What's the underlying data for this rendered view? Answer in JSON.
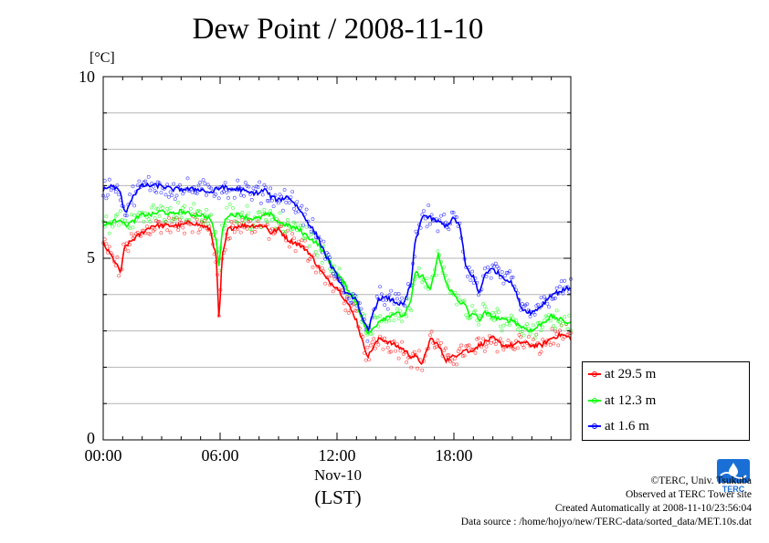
{
  "chart_data": {
    "type": "line",
    "title": "Dew Point / 2008-11-10",
    "ylabel": "[°C]",
    "xlabel": "(LST)",
    "date_label": "Nov-10",
    "ylim": [
      0,
      10
    ],
    "xlim": [
      0,
      24
    ],
    "x_tick_labels": [
      "00:00",
      "06:00",
      "12:00",
      "18:00"
    ],
    "y_tick_labels": [
      "10",
      "5",
      "0"
    ],
    "grid": true,
    "legend_position": "bottom-right",
    "x": [
      0,
      0.5,
      0.9,
      1.1,
      1.5,
      2,
      2.5,
      3,
      3.5,
      4,
      4.5,
      5,
      5.5,
      5.8,
      5.95,
      6.1,
      6.4,
      7,
      7.5,
      8,
      8.3,
      8.6,
      9,
      9.5,
      10,
      10.5,
      11,
      11.5,
      12,
      12.5,
      13,
      13.3,
      13.6,
      13.9,
      14.2,
      14.6,
      15,
      15.4,
      15.8,
      16,
      16.4,
      16.8,
      17.2,
      17.6,
      18,
      18.3,
      18.6,
      18.8,
      19,
      19.3,
      19.6,
      20,
      20.5,
      21,
      21.5,
      22,
      22.5,
      23,
      23.5,
      24
    ],
    "series": [
      {
        "name": "at 29.5 m",
        "color": "#ff0000",
        "values": [
          5.4,
          5.0,
          4.6,
          5.3,
          5.5,
          5.7,
          5.9,
          5.9,
          5.9,
          5.9,
          6.0,
          5.9,
          5.8,
          5.0,
          3.2,
          5.0,
          5.8,
          5.9,
          5.9,
          5.9,
          5.9,
          5.7,
          5.8,
          5.5,
          5.4,
          5.2,
          4.8,
          4.4,
          4.2,
          3.8,
          3.3,
          2.7,
          2.3,
          2.6,
          2.8,
          2.7,
          2.6,
          2.5,
          2.3,
          2.3,
          2.1,
          2.8,
          2.6,
          2.2,
          2.3,
          2.4,
          2.5,
          2.4,
          2.5,
          2.6,
          2.7,
          2.8,
          2.6,
          2.6,
          2.7,
          2.6,
          2.6,
          2.8,
          2.9,
          2.8
        ]
      },
      {
        "name": "at 12.3 m",
        "color": "#00ff00",
        "values": [
          5.9,
          6.0,
          6.1,
          5.9,
          6.0,
          6.2,
          6.2,
          6.3,
          6.2,
          6.3,
          6.2,
          6.2,
          6.1,
          5.5,
          4.7,
          5.8,
          6.2,
          6.2,
          6.1,
          6.1,
          6.2,
          6.2,
          6.0,
          5.9,
          5.8,
          5.6,
          5.4,
          5.0,
          4.6,
          4.2,
          3.8,
          3.3,
          2.9,
          3.1,
          3.3,
          3.4,
          3.5,
          3.4,
          3.8,
          4.6,
          4.5,
          4.1,
          5.1,
          4.3,
          4.0,
          3.8,
          3.7,
          3.4,
          3.5,
          3.3,
          3.5,
          3.4,
          3.3,
          3.3,
          3.1,
          3.0,
          3.2,
          3.4,
          3.3,
          3.2
        ]
      },
      {
        "name": "at 1.6 m",
        "color": "#0000ff",
        "values": [
          6.9,
          7.0,
          6.8,
          6.2,
          6.7,
          7.0,
          7.0,
          7.0,
          6.9,
          6.9,
          6.9,
          6.9,
          6.8,
          6.9,
          6.9,
          7.0,
          6.9,
          6.9,
          6.8,
          6.8,
          6.9,
          6.7,
          6.6,
          6.7,
          6.4,
          6.0,
          5.6,
          5.0,
          4.5,
          4.0,
          3.9,
          3.3,
          3.0,
          3.6,
          3.9,
          3.9,
          3.8,
          3.7,
          4.3,
          5.4,
          6.2,
          6.1,
          6.0,
          5.9,
          6.1,
          5.9,
          4.8,
          4.6,
          4.5,
          4.0,
          4.6,
          4.7,
          4.5,
          4.3,
          3.6,
          3.5,
          3.7,
          4.0,
          4.1,
          4.2
        ]
      }
    ]
  },
  "footer": {
    "copyright": "©TERC, Univ. Tsukuba",
    "observed": "Observed at TERC Tower site",
    "created": "Created Automatically at 2008-11-10/23:56:04",
    "source": "Data source : /home/hojyo/new/TERC-data/sorted_data/MET.10s.dat"
  },
  "logo": {
    "text": "TERC",
    "color": "#1a6fd6",
    "icon": "terc-logo-icon"
  }
}
